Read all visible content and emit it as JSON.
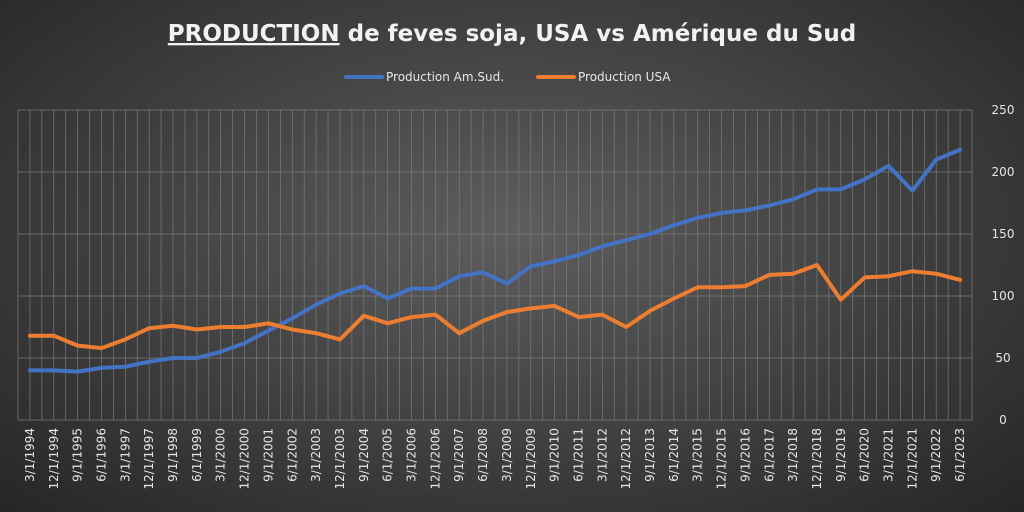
{
  "chart_data": {
    "type": "line",
    "title_main": "PRODUCTION",
    "title_rest": " de feves soja, USA vs Amérique du Sud",
    "xlabel": "",
    "ylabel": "",
    "ylim": [
      0,
      250
    ],
    "yticks": [
      0,
      50,
      100,
      150,
      200,
      250
    ],
    "y_axis_side": "right",
    "grid": true,
    "legend_position": "top",
    "x_tick_labels": [
      "3/1/1994",
      "12/1/1994",
      "9/1/1995",
      "6/1/1996",
      "3/1/1997",
      "12/1/1997",
      "9/1/1998",
      "6/1/1999",
      "3/1/2000",
      "12/1/2000",
      "9/1/2001",
      "6/1/2002",
      "3/1/2003",
      "12/1/2003",
      "9/1/2004",
      "6/1/2005",
      "3/1/2006",
      "12/1/2006",
      "9/1/2007",
      "6/1/2008",
      "3/1/2009",
      "12/1/2009",
      "9/1/2010",
      "6/1/2011",
      "3/1/2012",
      "12/1/2012",
      "9/1/2013",
      "6/1/2014",
      "3/1/2015",
      "12/1/2015",
      "9/1/2016",
      "6/1/2017",
      "3/1/2018",
      "12/1/2018",
      "9/1/2019",
      "6/1/2020",
      "3/1/2021",
      "12/1/2021",
      "9/1/2022",
      "6/1/2023"
    ],
    "series": [
      {
        "name": "Production Am.Sud.",
        "color": "#4472c4",
        "x": [
          "3/1/1994",
          "12/1/1994",
          "9/1/1995",
          "6/1/1996",
          "3/1/1997",
          "12/1/1997",
          "9/1/1998",
          "6/1/1999",
          "3/1/2000",
          "12/1/2000",
          "9/1/2001",
          "6/1/2002",
          "3/1/2003",
          "12/1/2003",
          "9/1/2004",
          "6/1/2005",
          "3/1/2006",
          "12/1/2006",
          "9/1/2007",
          "6/1/2008",
          "3/1/2009",
          "12/1/2009",
          "9/1/2010",
          "6/1/2011",
          "3/1/2012",
          "12/1/2012",
          "9/1/2013",
          "6/1/2014",
          "3/1/2015",
          "12/1/2015",
          "9/1/2016",
          "6/1/2017",
          "3/1/2018",
          "12/1/2018",
          "9/1/2019",
          "6/1/2020",
          "3/1/2021",
          "12/1/2021",
          "9/1/2022",
          "6/1/2023"
        ],
        "values": [
          40,
          40,
          39,
          42,
          43,
          47,
          50,
          50,
          55,
          62,
          72,
          82,
          93,
          102,
          108,
          98,
          106,
          106,
          116,
          119,
          110,
          124,
          128,
          133,
          140,
          145,
          150,
          157,
          163,
          167,
          169,
          173,
          178,
          186,
          186,
          194,
          205,
          185,
          210,
          218
        ]
      },
      {
        "name": "Production USA",
        "color": "#ed7d31",
        "x": [
          "3/1/1994",
          "12/1/1994",
          "9/1/1995",
          "6/1/1996",
          "3/1/1997",
          "12/1/1997",
          "9/1/1998",
          "6/1/1999",
          "3/1/2000",
          "12/1/2000",
          "9/1/2001",
          "6/1/2002",
          "3/1/2003",
          "12/1/2003",
          "9/1/2004",
          "6/1/2005",
          "3/1/2006",
          "12/1/2006",
          "9/1/2007",
          "6/1/2008",
          "3/1/2009",
          "12/1/2009",
          "9/1/2010",
          "6/1/2011",
          "3/1/2012",
          "12/1/2012",
          "9/1/2013",
          "6/1/2014",
          "3/1/2015",
          "12/1/2015",
          "9/1/2016",
          "6/1/2017",
          "3/1/2018",
          "12/1/2018",
          "9/1/2019",
          "6/1/2020",
          "3/1/2021",
          "12/1/2021",
          "9/1/2022",
          "6/1/2023"
        ],
        "values": [
          68,
          68,
          60,
          58,
          65,
          74,
          76,
          73,
          75,
          75,
          78,
          73,
          70,
          65,
          84,
          78,
          83,
          85,
          70,
          80,
          87,
          90,
          92,
          83,
          85,
          75,
          88,
          98,
          107,
          107,
          108,
          117,
          118,
          125,
          97,
          115,
          116,
          120,
          118,
          113
        ]
      }
    ]
  }
}
